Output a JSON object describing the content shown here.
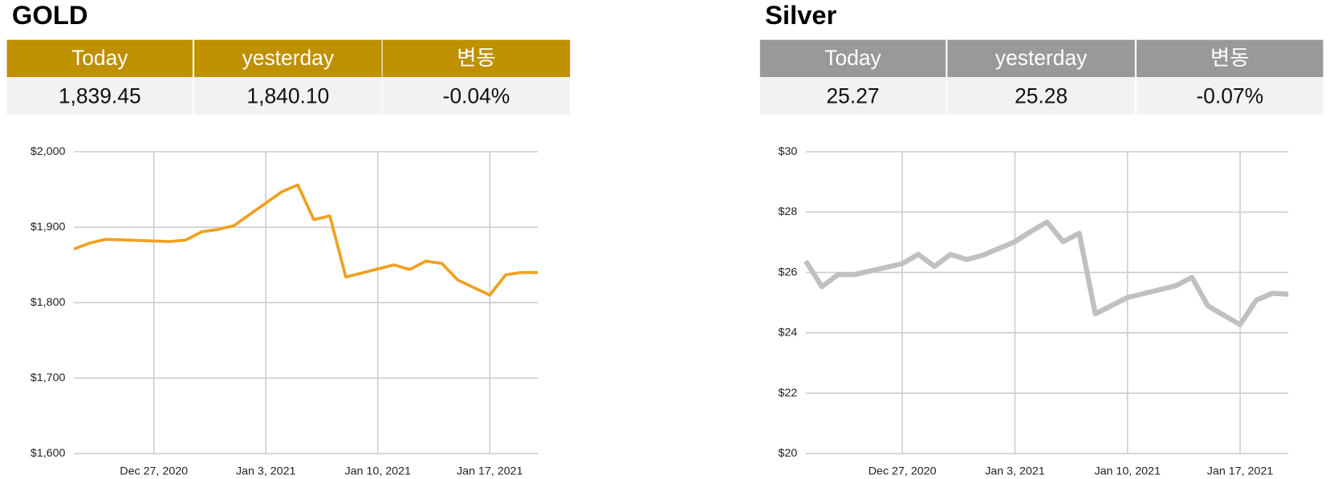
{
  "panels": [
    {
      "title": "GOLD",
      "color": "#bf9000",
      "table": {
        "headers": [
          "Today",
          "yesterday",
          "변동"
        ],
        "values": [
          "1,839.45",
          "1,840.10",
          "-0.04%"
        ]
      }
    },
    {
      "title": "Silver",
      "color": "#999999",
      "table": {
        "headers": [
          "Today",
          "yesterday",
          "변동"
        ],
        "values": [
          "25.27",
          "25.28",
          "-0.07%"
        ]
      }
    }
  ],
  "chart_data": [
    {
      "type": "line",
      "color": "#f0a020",
      "grid": true,
      "x": [
        "2020-12-22",
        "2020-12-23",
        "2020-12-24",
        "2020-12-28",
        "2020-12-29",
        "2020-12-30",
        "2020-12-31",
        "2021-01-01",
        "2021-01-04",
        "2021-01-05",
        "2021-01-06",
        "2021-01-07",
        "2021-01-08",
        "2021-01-11",
        "2021-01-12",
        "2021-01-13",
        "2021-01-14",
        "2021-01-15",
        "2021-01-17",
        "2021-01-18",
        "2021-01-19",
        "2021-01-20"
      ],
      "values": [
        1871,
        1879,
        1884,
        1881,
        1883,
        1894,
        1897,
        1902,
        1947,
        1956,
        1910,
        1915,
        1834,
        1850,
        1844,
        1855,
        1852,
        1830,
        1810,
        1837,
        1840,
        1840
      ],
      "xlim": [
        "2020-12-22",
        "2021-01-20"
      ],
      "xticks": [
        {
          "value": "2020-12-27",
          "label": "Dec 27, 2020"
        },
        {
          "value": "2021-01-03",
          "label": "Jan 3, 2021"
        },
        {
          "value": "2021-01-10",
          "label": "Jan 10, 2021"
        },
        {
          "value": "2021-01-17",
          "label": "Jan 17, 2021"
        }
      ],
      "ylim": [
        1600,
        2000
      ],
      "yticks": [
        {
          "value": 1600,
          "label": "$1,600"
        },
        {
          "value": 1700,
          "label": "$1,700"
        },
        {
          "value": 1800,
          "label": "$1,800"
        },
        {
          "value": 1900,
          "label": "$1,900"
        },
        {
          "value": 2000,
          "label": "$2,000"
        }
      ]
    },
    {
      "type": "line",
      "color": "#c0c0c0",
      "grid": true,
      "x": [
        "2020-12-21",
        "2020-12-22",
        "2020-12-23",
        "2020-12-24",
        "2020-12-27",
        "2020-12-28",
        "2020-12-29",
        "2020-12-30",
        "2020-12-31",
        "2021-01-01",
        "2021-01-03",
        "2021-01-04",
        "2021-01-05",
        "2021-01-06",
        "2021-01-07",
        "2021-01-08",
        "2021-01-10",
        "2021-01-13",
        "2021-01-14",
        "2021-01-15",
        "2021-01-17",
        "2021-01-18",
        "2021-01-19",
        "2021-01-20"
      ],
      "values": [
        26.38,
        25.53,
        25.93,
        25.93,
        26.29,
        26.6,
        26.2,
        26.6,
        26.43,
        26.57,
        27.02,
        27.36,
        27.67,
        27.02,
        27.3,
        24.63,
        25.17,
        25.56,
        25.84,
        24.89,
        24.27,
        25.08,
        25.31,
        25.28
      ],
      "xlim": [
        "2020-12-21",
        "2021-01-20"
      ],
      "xticks": [
        {
          "value": "2020-12-27",
          "label": "Dec 27, 2020"
        },
        {
          "value": "2021-01-03",
          "label": "Jan 3, 2021"
        },
        {
          "value": "2021-01-10",
          "label": "Jan 10, 2021"
        },
        {
          "value": "2021-01-17",
          "label": "Jan 17, 2021"
        }
      ],
      "ylim": [
        20,
        30
      ],
      "yticks": [
        {
          "value": 20,
          "label": "$20"
        },
        {
          "value": 22,
          "label": "$22"
        },
        {
          "value": 24,
          "label": "$24"
        },
        {
          "value": 26,
          "label": "$26"
        },
        {
          "value": 28,
          "label": "$28"
        },
        {
          "value": 30,
          "label": "$30"
        }
      ]
    }
  ]
}
